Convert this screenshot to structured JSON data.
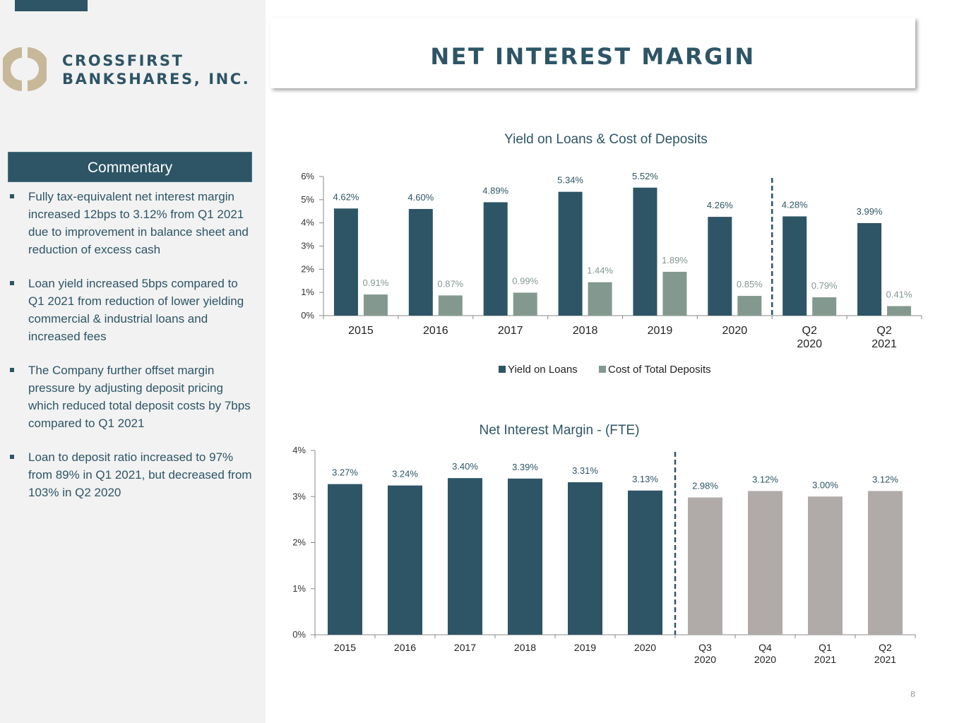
{
  "company": {
    "line1": "CROSSFIRST",
    "line2": "BANKSHARES, INC."
  },
  "page_title": "NET INTEREST MARGIN",
  "sidebar": {
    "header": "Commentary",
    "bullets": [
      "Fully tax-equivalent net interest margin increased 12bps to 3.12% from Q1 2021 due to improvement in balance sheet and reduction of excess cash",
      "Loan yield increased 5bps compared to Q1 2021 from reduction of lower yielding commercial & industrial loans and increased fees",
      "The Company further offset margin pressure by adjusting deposit pricing which reduced total deposit costs by 7bps compared to Q1 2021",
      "Loan to deposit ratio increased to 97% from 89% in Q1 2021, but decreased from 103% in Q2 2020"
    ]
  },
  "page_number": "8",
  "colors": {
    "primary": "#2d5566",
    "secondary": "#83998f",
    "gray_bar": "#b0aba9",
    "sidebar_bg": "#f2f2f2",
    "logo_gold": "#c8b89a"
  },
  "chart_data": [
    {
      "type": "bar",
      "title": "Yield on Loans & Cost of Deposits",
      "categories": [
        [
          "2015"
        ],
        [
          "2016"
        ],
        [
          "2017"
        ],
        [
          "2018"
        ],
        [
          "2019"
        ],
        [
          "2020"
        ],
        [
          "Q2",
          "2020"
        ],
        [
          "Q2",
          "2021"
        ]
      ],
      "series": [
        {
          "name": "Yield on Loans",
          "values": [
            4.62,
            4.6,
            4.89,
            5.34,
            5.52,
            4.26,
            4.28,
            3.99
          ],
          "labels": [
            "4.62%",
            "4.60%",
            "4.89%",
            "5.34%",
            "5.52%",
            "4.26%",
            "4.28%",
            "3.99%"
          ],
          "color": "#2d5566"
        },
        {
          "name": "Cost of Total Deposits",
          "values": [
            0.91,
            0.87,
            0.99,
            1.44,
            1.89,
            0.85,
            0.79,
            0.41
          ],
          "labels": [
            "0.91%",
            "0.87%",
            "0.99%",
            "1.44%",
            "1.89%",
            "0.85%",
            "0.79%",
            "0.41%"
          ],
          "color": "#83998f"
        }
      ],
      "yticks": [
        "0%",
        "1%",
        "2%",
        "3%",
        "4%",
        "5%",
        "6%"
      ],
      "ylim": [
        0,
        6
      ],
      "separator_after_index": 5,
      "legend": "bottom"
    },
    {
      "type": "bar",
      "title": "Net Interest Margin - (FTE)",
      "categories": [
        [
          "2015"
        ],
        [
          "2016"
        ],
        [
          "2017"
        ],
        [
          "2018"
        ],
        [
          "2019"
        ],
        [
          "2020"
        ],
        [
          "Q3",
          "2020"
        ],
        [
          "Q4",
          "2020"
        ],
        [
          "Q1",
          "2021"
        ],
        [
          "Q2",
          "2021"
        ]
      ],
      "values": [
        3.27,
        3.24,
        3.4,
        3.39,
        3.31,
        3.13,
        2.98,
        3.12,
        3.0,
        3.12
      ],
      "labels": [
        "3.27%",
        "3.24%",
        "3.40%",
        "3.39%",
        "3.31%",
        "3.13%",
        "2.98%",
        "3.12%",
        "3.00%",
        "3.12%"
      ],
      "colors": [
        "#2d5566",
        "#2d5566",
        "#2d5566",
        "#2d5566",
        "#2d5566",
        "#2d5566",
        "#b0aba9",
        "#b0aba9",
        "#b0aba9",
        "#b0aba9"
      ],
      "yticks": [
        "0%",
        "1%",
        "2%",
        "3%",
        "4%"
      ],
      "ylim": [
        0,
        4
      ],
      "separator_after_index": 5
    }
  ]
}
